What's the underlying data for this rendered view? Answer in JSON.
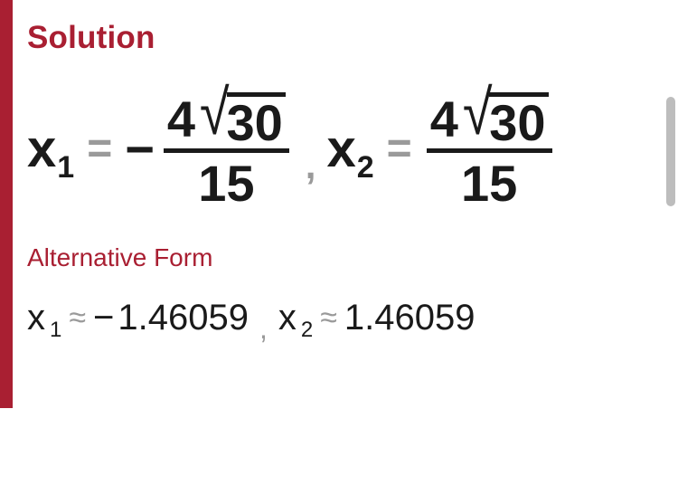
{
  "heading": "Solution",
  "alt_heading": "Alternative Form",
  "colors": {
    "accent": "#a91f32",
    "text": "#1a1a1a",
    "muted": "#9a9a9a",
    "scrollbar_thumb": "#bdbdbd",
    "background": "#ffffff"
  },
  "solution": {
    "equations": [
      {
        "variable": "x",
        "subscript": "1",
        "relation": "=",
        "sign": "−",
        "numerator_coef": "4",
        "radicand": "30",
        "denominator": "15"
      },
      {
        "variable": "x",
        "subscript": "2",
        "relation": "=",
        "sign": "",
        "numerator_coef": "4",
        "radicand": "30",
        "denominator": "15"
      }
    ],
    "separator": ","
  },
  "alternative": {
    "equations": [
      {
        "variable": "x",
        "subscript": "1",
        "relation": "≈",
        "sign": "−",
        "value": "1.46059"
      },
      {
        "variable": "x",
        "subscript": "2",
        "relation": "≈",
        "sign": "",
        "value": "1.46059"
      }
    ],
    "separator": ","
  }
}
